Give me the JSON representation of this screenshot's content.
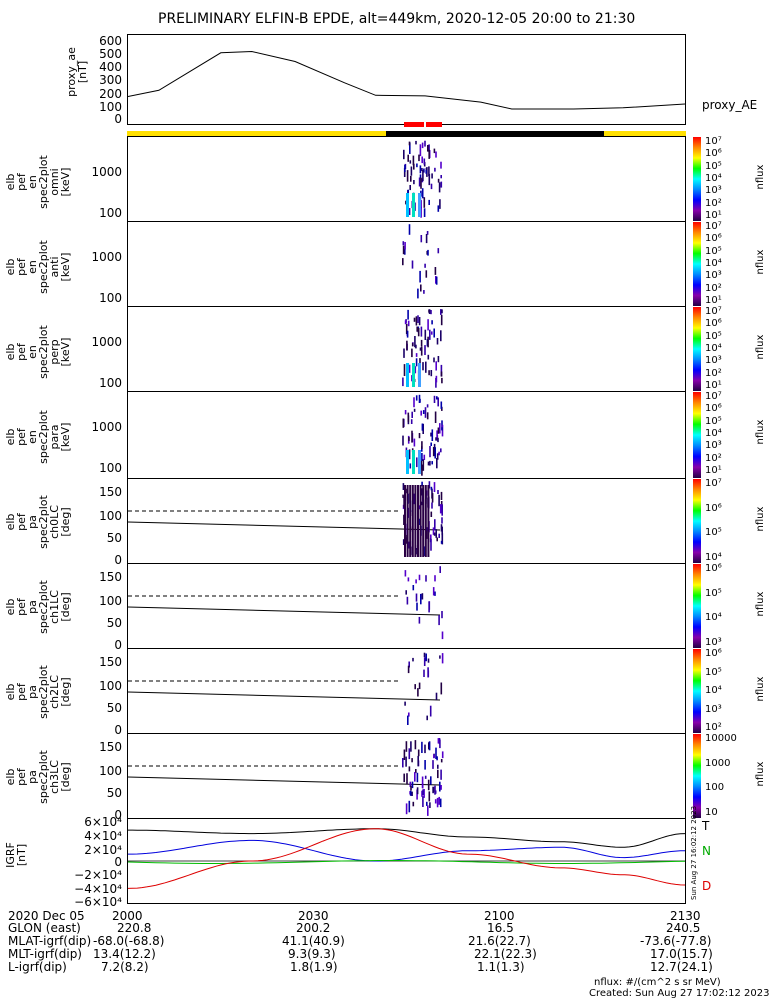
{
  "title": "PRELIMINARY ELFIN-B EPDE, alt=449km, 2020-12-05 20:00 to 21:30",
  "proxy_ae": {
    "ylabel": [
      "proxy_ae",
      "[nT]"
    ],
    "yticks": [
      "600",
      "500",
      "400",
      "300",
      "200",
      "100",
      "0"
    ],
    "legend": "proxy_AE"
  },
  "spec_panels": [
    {
      "ylabel": [
        "elb",
        "pef",
        "en",
        "spec2plot",
        "omni",
        "[keV]"
      ],
      "yticks": [
        "1000",
        "100"
      ]
    },
    {
      "ylabel": [
        "elb",
        "pef",
        "en",
        "spec2plot",
        "anti",
        "[keV]"
      ],
      "yticks": [
        "1000",
        "100"
      ]
    },
    {
      "ylabel": [
        "elb",
        "pef",
        "en",
        "spec2plot",
        "perp",
        "[keV]"
      ],
      "yticks": [
        "1000",
        "100"
      ]
    },
    {
      "ylabel": [
        "elb",
        "pef",
        "en",
        "spec2plot",
        "para",
        "[keV]"
      ],
      "yticks": [
        "1000",
        "100"
      ]
    }
  ],
  "pa_panels": [
    {
      "ylabel": [
        "elb",
        "pef",
        "pa",
        "spec2plot",
        "ch0LC",
        "[deg]"
      ],
      "yticks": [
        "150",
        "100",
        "50",
        "0"
      ]
    },
    {
      "ylabel": [
        "elb",
        "pef",
        "pa",
        "spec2plot",
        "ch1LC",
        "[deg]"
      ],
      "yticks": [
        "150",
        "100",
        "50",
        "0"
      ]
    },
    {
      "ylabel": [
        "elb",
        "pef",
        "pa",
        "spec2plot",
        "ch2LC",
        "[deg]"
      ],
      "yticks": [
        "150",
        "100",
        "50",
        "0"
      ]
    },
    {
      "ylabel": [
        "elb",
        "pef",
        "pa",
        "spec2plot",
        "ch3LC",
        "[deg]"
      ],
      "yticks": [
        "150",
        "100",
        "50",
        "0"
      ]
    }
  ],
  "colorbars": [
    {
      "labels": [
        "10⁷",
        "10⁶",
        "10⁵",
        "10⁴",
        "10³",
        "10²",
        "10¹"
      ],
      "unit": "nflux"
    },
    {
      "labels": [
        "10⁷",
        "10⁶",
        "10⁵",
        "10⁴",
        "10³",
        "10²",
        "10¹"
      ],
      "unit": "nflux"
    },
    {
      "labels": [
        "10⁷",
        "10⁶",
        "10⁵",
        "10⁴",
        "10³",
        "10²",
        "10¹"
      ],
      "unit": "nflux"
    },
    {
      "labels": [
        "10⁷",
        "10⁶",
        "10⁵",
        "10⁴",
        "10³",
        "10²",
        "10¹"
      ],
      "unit": "nflux"
    },
    {
      "labels": [
        "10⁷",
        "10⁶",
        "10⁵",
        "10⁴"
      ],
      "unit": "nflux"
    },
    {
      "labels": [
        "10⁶",
        "10⁵",
        "10⁴",
        "10³"
      ],
      "unit": "nflux"
    },
    {
      "labels": [
        "10⁶",
        "10⁵",
        "10⁴",
        "10³",
        "10²"
      ],
      "unit": "nflux"
    },
    {
      "labels": [
        "10000",
        "1000",
        "100",
        "10"
      ],
      "unit": "nflux"
    }
  ],
  "igrf": {
    "ylabel": [
      "IGRF",
      "[nT]"
    ],
    "yticks": [
      "6×10⁴",
      "4×10⁴",
      "2×10⁴",
      "0",
      "−2×10⁴",
      "−4×10⁴",
      "−6×10⁴"
    ],
    "legend": [
      "T",
      "N",
      "D"
    ],
    "stamp": "Sun Aug 27 16:02:12 2023"
  },
  "xaxis": {
    "ticks": [
      "2000",
      "2030",
      "2100",
      "2130"
    ]
  },
  "footer": {
    "rows": [
      [
        "2020 Dec 05",
        "2000",
        "2030",
        "2100",
        "2130"
      ],
      [
        "GLON (east)",
        "220.8",
        "200.2",
        "16.5",
        "240.5"
      ],
      [
        "MLAT-igrf(dip)",
        "-68.0(-68.8)",
        "41.1(40.9)",
        "21.6(22.7)",
        "-73.6(-77.8)"
      ],
      [
        "MLT-igrf(dip)",
        "13.4(12.2)",
        "9.3(9.3)",
        "22.1(22.3)",
        "17.0(15.7)"
      ],
      [
        "L-igrf(dip)",
        "7.2(8.2)",
        "1.8(1.9)",
        "1.1(1.3)",
        "12.7(24.1)"
      ]
    ],
    "nflux_note": "nflux: #/(cm^2 s sr MeV)",
    "created": "Created: Sun Aug 27 17:02:12 2023"
  },
  "colors": {
    "day_bar": "#ffe000",
    "night_bar": "#000000",
    "science_marker": "#ff0000",
    "T": "#000000",
    "N": "#00aa00",
    "D": "#dd0000",
    "blue": "#0000dd",
    "green": "#00bb00"
  },
  "chart_data": {
    "type": "line",
    "series": [
      {
        "name": "proxy_AE",
        "x_minutes": [
          0,
          5,
          15,
          20,
          27,
          35,
          40,
          48,
          57,
          62,
          72,
          80,
          90
        ],
        "values": [
          140,
          190,
          490,
          500,
          420,
          250,
          150,
          145,
          95,
          40,
          40,
          50,
          80
        ]
      }
    ],
    "ylim_ae": [
      0,
      600
    ],
    "igrf_series": [
      {
        "name": "T",
        "x_minutes": [
          0,
          20,
          40,
          55,
          70,
          80,
          90
        ],
        "values": [
          45000,
          40000,
          47000,
          35000,
          28000,
          20000,
          40000
        ]
      },
      {
        "name": "N",
        "x_minutes": [
          0,
          20,
          40,
          55,
          70,
          80,
          90
        ],
        "values": [
          10000,
          30000,
          0,
          15000,
          20000,
          5000,
          15000
        ]
      },
      {
        "name": "D",
        "x_minutes": [
          0,
          20,
          40,
          55,
          70,
          80,
          90
        ],
        "values": [
          -40000,
          0,
          47000,
          10000,
          -10000,
          -20000,
          -35000
        ]
      }
    ],
    "ylim_igrf": [
      -60000,
      60000
    ],
    "xlim_minutes": [
      0,
      90
    ]
  }
}
